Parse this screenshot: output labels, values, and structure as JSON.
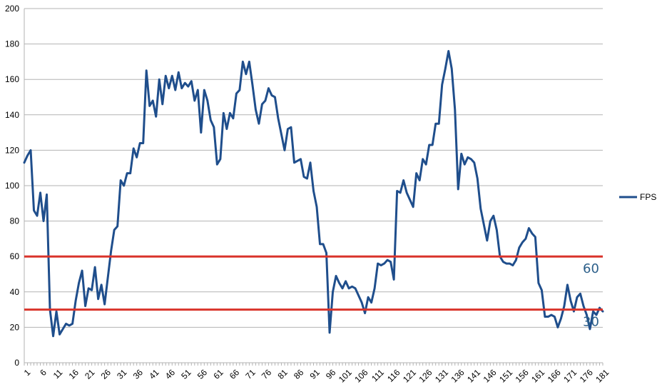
{
  "chart_data": {
    "type": "line",
    "title": "",
    "xlabel": "",
    "ylabel": "",
    "ylim": [
      0,
      200
    ],
    "yticks": [
      0,
      20,
      40,
      60,
      80,
      100,
      120,
      140,
      160,
      180,
      200
    ],
    "x_start": 1,
    "x_tick_step": 5,
    "grid": "horizontal",
    "legend_position": "right",
    "series": [
      {
        "name": "FPS",
        "color": "#1f4e8c",
        "values": [
          113,
          117,
          120,
          86,
          83,
          96,
          80,
          95,
          30,
          15,
          29,
          16,
          19,
          22,
          21,
          22,
          35,
          45,
          52,
          32,
          42,
          41,
          54,
          36,
          44,
          33,
          48,
          63,
          75,
          77,
          103,
          100,
          107,
          107,
          121,
          116,
          124,
          124,
          165,
          145,
          148,
          139,
          160,
          146,
          162,
          155,
          162,
          154,
          164,
          155,
          158,
          156,
          159,
          148,
          154,
          130,
          154,
          148,
          137,
          133,
          112,
          115,
          141,
          132,
          141,
          138,
          152,
          154,
          170,
          163,
          170,
          157,
          143,
          135,
          146,
          148,
          155,
          151,
          150,
          138,
          129,
          120,
          132,
          133,
          113,
          114,
          115,
          105,
          104,
          113,
          97,
          88,
          67,
          67,
          62,
          17,
          40,
          49,
          45,
          42,
          46,
          42,
          43,
          42,
          38,
          34,
          28,
          37,
          34,
          42,
          56,
          55,
          56,
          58,
          57,
          47,
          97,
          96,
          103,
          96,
          92,
          88,
          107,
          103,
          115,
          112,
          123,
          123,
          135,
          135,
          157,
          166,
          176,
          166,
          143,
          98,
          118,
          112,
          116,
          115,
          113,
          104,
          87,
          78,
          69,
          80,
          83,
          75,
          60,
          57,
          56,
          56,
          55,
          58,
          65,
          68,
          70,
          76,
          73,
          71,
          45,
          41,
          26,
          26,
          27,
          26,
          20,
          25,
          32,
          44,
          35,
          29,
          37,
          39,
          32,
          27,
          19,
          29,
          27,
          31,
          29
        ]
      }
    ],
    "reference_lines": [
      {
        "value": 60,
        "label": "60",
        "color": "#d9342b"
      },
      {
        "value": 30,
        "label": "30",
        "color": "#d9342b"
      }
    ]
  }
}
